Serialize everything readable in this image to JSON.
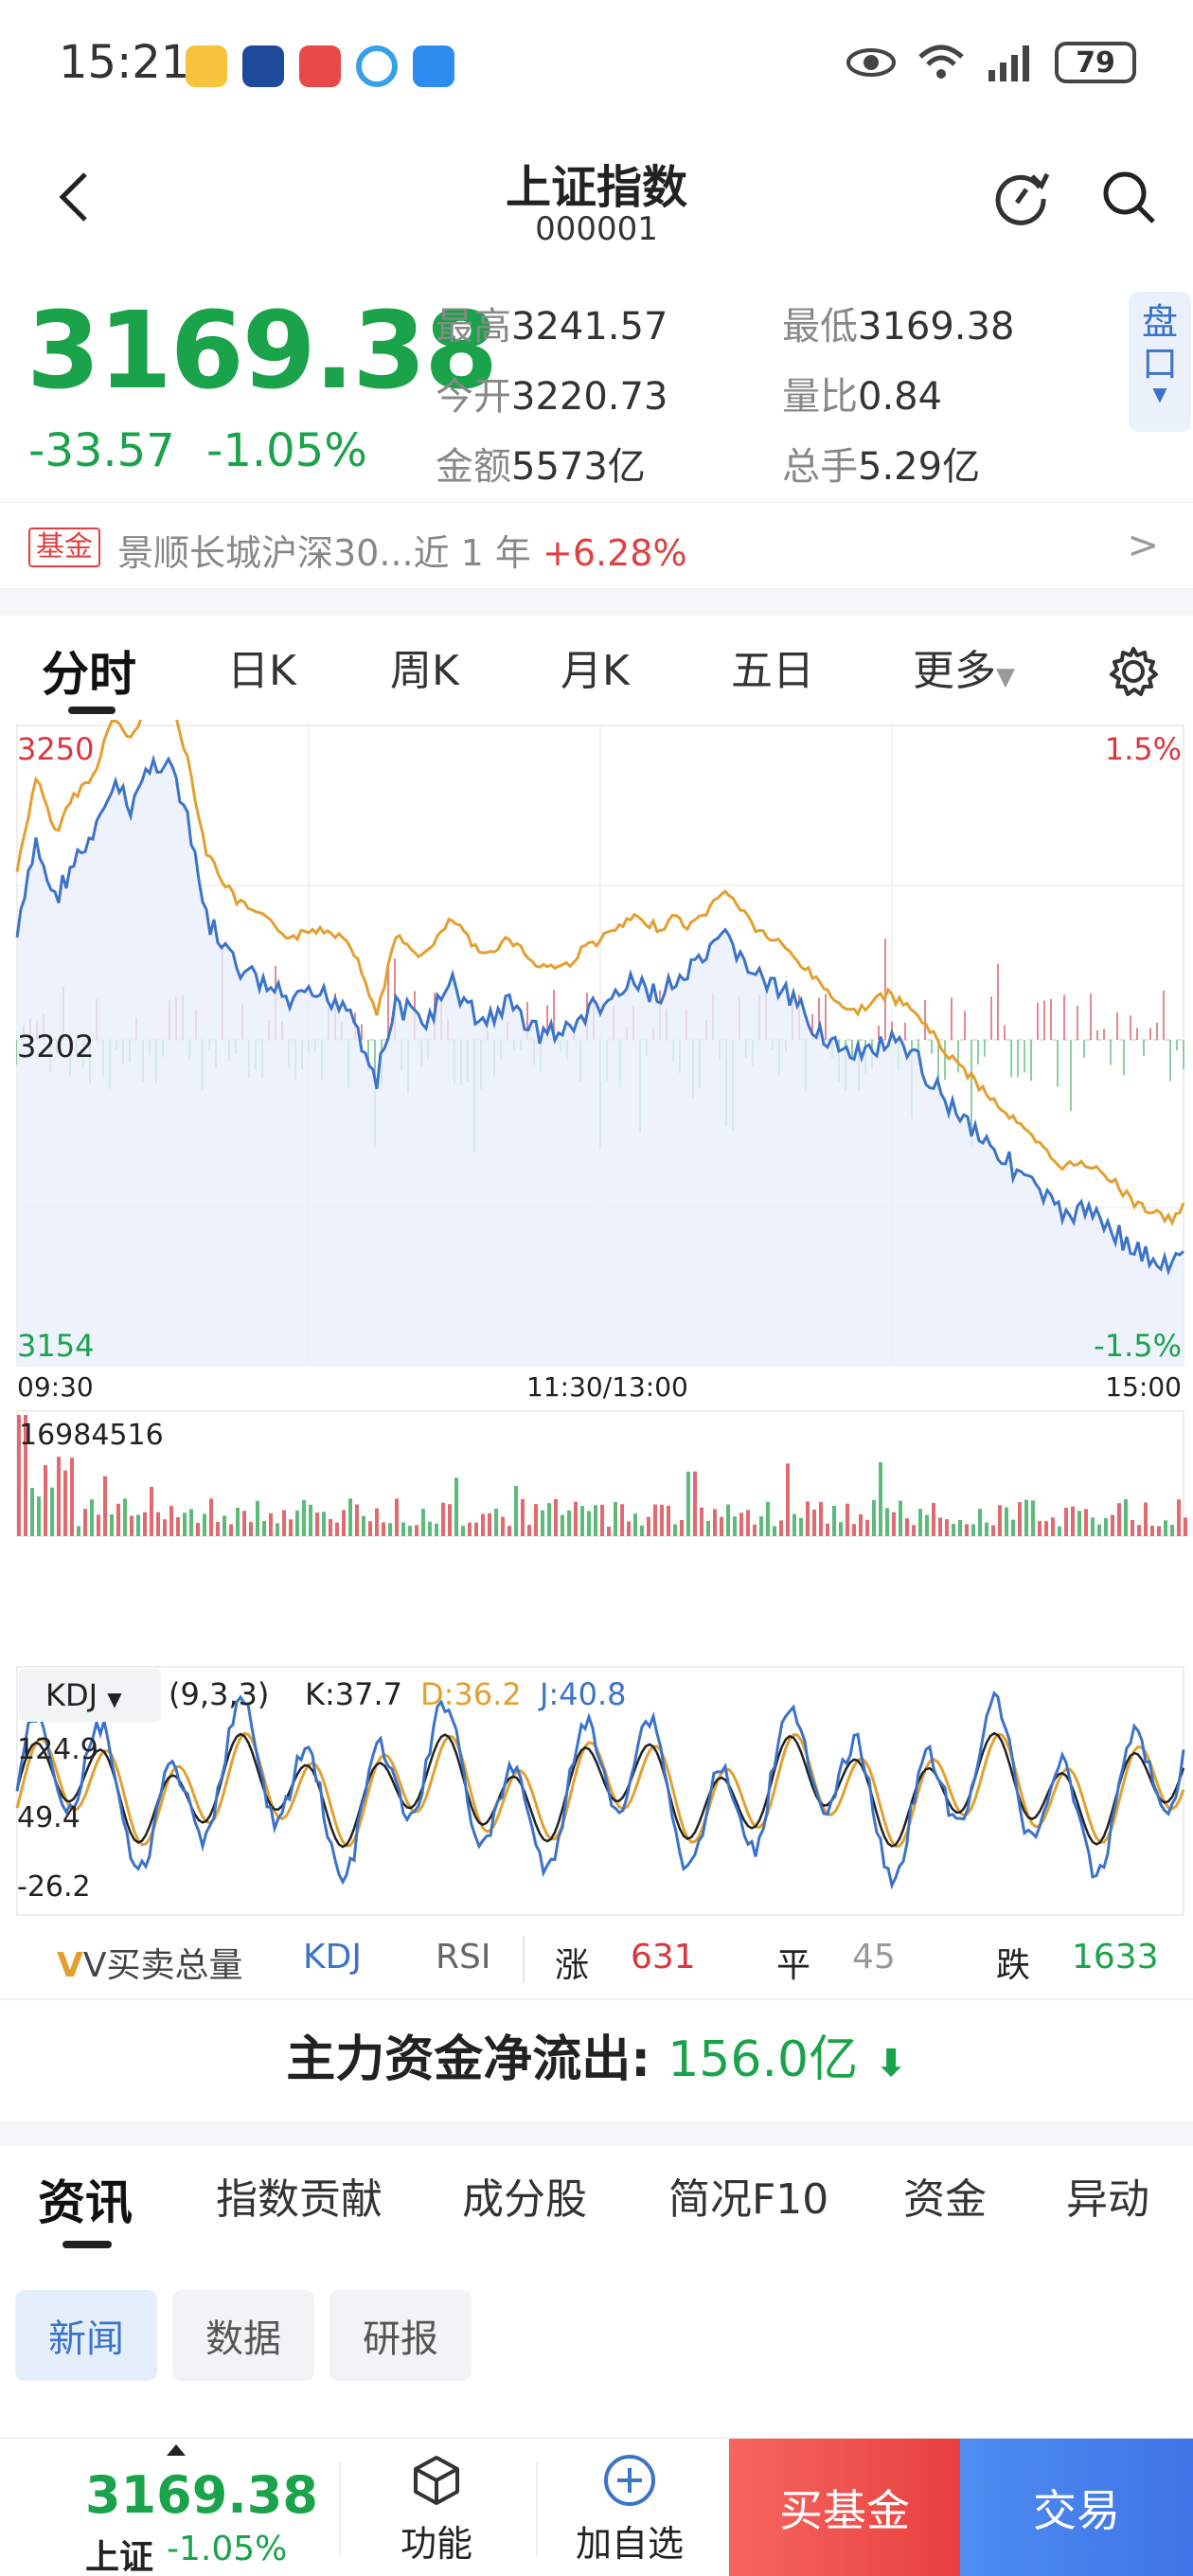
{
  "status": {
    "time": "15:21",
    "battery": "79"
  },
  "header": {
    "title": "上证指数",
    "code": "000001"
  },
  "quote": {
    "price": "3169.38",
    "change": "-33.57",
    "change_pct": "-1.05%",
    "stats": [
      {
        "label": "最高",
        "value": "3241.57"
      },
      {
        "label": "最低",
        "value": "3169.38"
      },
      {
        "label": "今开",
        "value": "3220.73"
      },
      {
        "label": "量比",
        "value": "0.84"
      },
      {
        "label": "金额",
        "value": "5573亿"
      },
      {
        "label": "总手",
        "value": "5.29亿"
      }
    ],
    "pankou": "盘口"
  },
  "fund_banner": {
    "tag": "基金",
    "text": "景顺长城沪深30...近 1 年",
    "ret": "+6.28%"
  },
  "period_tabs": [
    "分时",
    "日K",
    "周K",
    "月K",
    "五日",
    "更多"
  ],
  "intraday": {
    "y_top": "3250",
    "y_mid": "3202",
    "y_bottom": "3154",
    "pct_top": "1.5%",
    "pct_bottom": "-1.5%",
    "x_labels": [
      "09:30",
      "11:30/13:00",
      "15:00"
    ],
    "volume_max": "16984516"
  },
  "kdj": {
    "name": "KDJ",
    "params": "(9,3,3)",
    "k": "K:37.7",
    "d": "D:36.2",
    "j": "J:40.8",
    "y_labels": [
      "124.9",
      "49.4",
      "-26.2"
    ]
  },
  "indicator_tabs": {
    "items": [
      "V买卖总量",
      "KDJ",
      "RSI"
    ],
    "breadth": [
      {
        "label": "涨",
        "value": "631"
      },
      {
        "label": "平",
        "value": "45"
      },
      {
        "label": "跌",
        "value": "1633"
      }
    ]
  },
  "money_flow": {
    "label": "主力资金净流出:",
    "value": "156.0亿"
  },
  "news_tabs": [
    "资讯",
    "指数贡献",
    "成分股",
    "简况F10",
    "资金",
    "异动"
  ],
  "news_chips": [
    "新闻",
    "数据",
    "研报"
  ],
  "bottom_bar": {
    "price": "3169.38",
    "name": "上证",
    "change_pct": "-1.05%",
    "func": "功能",
    "add": "加自选",
    "buy_fund": "买基金",
    "trade": "交易"
  },
  "colors": {
    "up": "#d9363e",
    "down": "#1aa34a",
    "price_line": "#3b73c9",
    "avg_line": "#e3a030",
    "accent": "#3b73c9"
  }
}
